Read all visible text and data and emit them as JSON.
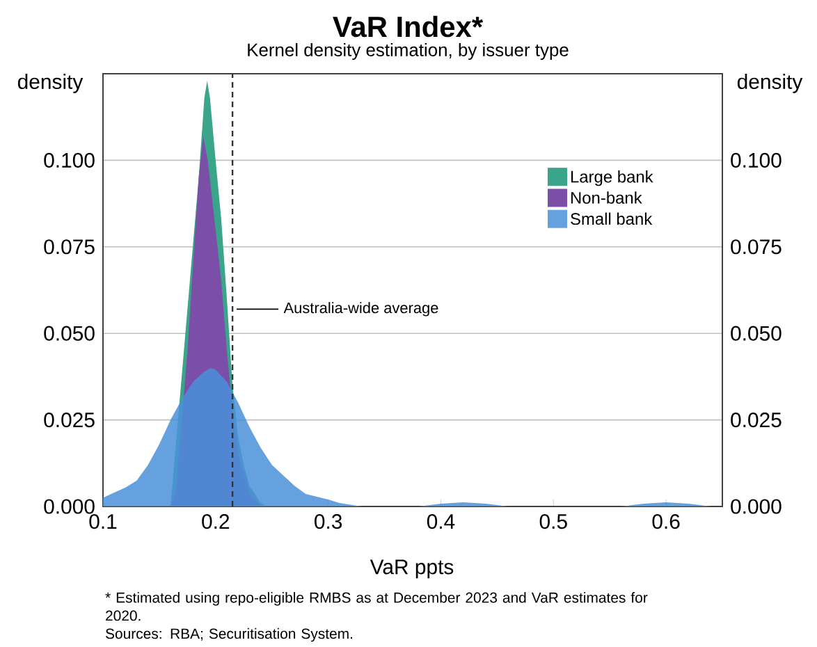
{
  "chart_data": {
    "type": "area",
    "title": "VaR Index*",
    "subtitle": "Kernel density estimation, by issuer type",
    "xlabel": "VaR ppts",
    "ylabel": "density",
    "y2label": "density",
    "annotations": [
      "* Estimated using repo-eligible RMBS as at December 2023 and VaR estimates for 2020.",
      "Sources: RBA; Securitisation System."
    ],
    "xlim": [
      0.1,
      0.65
    ],
    "xticks": [
      0.1,
      0.2,
      0.3,
      0.4,
      0.5,
      0.6
    ],
    "ylim": [
      0,
      0.125
    ],
    "yticks": [
      {
        "value": 0,
        "label": "0.000"
      },
      {
        "value": 0.025,
        "label": "0.025"
      },
      {
        "value": 0.05,
        "label": "0.050"
      },
      {
        "value": 0.075,
        "label": "0.075"
      },
      {
        "value": 0.1,
        "label": "0.100"
      }
    ],
    "y2lim": [
      0,
      0.125
    ],
    "y2ticks": [
      {
        "value": 0,
        "label": "0.000"
      },
      {
        "value": 0.025,
        "label": "0.025"
      },
      {
        "value": 0.05,
        "label": "0.050"
      },
      {
        "value": 0.075,
        "label": "0.075"
      },
      {
        "value": 0.1,
        "label": "0.100"
      }
    ],
    "grid": "y",
    "legend": "top right",
    "ref_lines": [
      {
        "axis": "x",
        "value": 0.215,
        "label": "Australia-wide average",
        "color": "#333333",
        "line_style": "dashed"
      }
    ],
    "series": [
      {
        "name": "Large bank",
        "color": "#3aa58a",
        "x": [
          0.16,
          0.17,
          0.175,
          0.18,
          0.185,
          0.19,
          0.1925,
          0.195,
          0.2,
          0.205,
          0.21,
          0.215,
          0.22,
          0.225,
          0.23,
          0.24,
          0.245
        ],
        "values": [
          0,
          null,
          null,
          null,
          0.095,
          0.118,
          0.123,
          0.118,
          0.1,
          0.083,
          0.06,
          0.035,
          0.02,
          0.012,
          0.006,
          0.001,
          0
        ]
      },
      {
        "name": "Non-bank",
        "color": "#7b4fa8",
        "x": [
          0.16,
          0.165,
          0.17,
          0.175,
          0.18,
          0.185,
          0.189,
          0.193,
          0.2,
          0.205,
          0.21,
          0.215,
          0.22,
          0.23,
          0.24
        ],
        "values": [
          0,
          0.005,
          0.025,
          0.045,
          0.07,
          0.095,
          0.107,
          0.1,
          0.08,
          0.065,
          0.045,
          0.028,
          0.015,
          0.004,
          0
        ]
      },
      {
        "name": "Small bank",
        "color": "#4a90d9",
        "x": [
          0.1,
          0.11,
          0.12,
          0.13,
          0.14,
          0.15,
          0.16,
          0.17,
          0.18,
          0.19,
          0.196,
          0.2,
          0.21,
          0.22,
          0.23,
          0.24,
          0.25,
          0.26,
          0.27,
          0.28,
          0.29,
          0.3,
          0.31,
          0.33,
          0.38,
          0.4,
          0.42,
          0.44,
          0.46,
          0.56,
          0.58,
          0.6,
          0.62,
          0.64,
          0.65
        ],
        "values": [
          0.0025,
          0.004,
          0.0055,
          0.0075,
          0.012,
          0.018,
          0.025,
          0.031,
          0.036,
          0.039,
          0.04,
          0.0395,
          0.036,
          0.03,
          0.023,
          0.017,
          0.012,
          0.009,
          0.006,
          0.0036,
          0.0028,
          0.002,
          0.001,
          0,
          0,
          0.0008,
          0.0012,
          0.0008,
          0,
          0,
          0.0008,
          0.0012,
          0.0008,
          0,
          0
        ]
      }
    ]
  }
}
